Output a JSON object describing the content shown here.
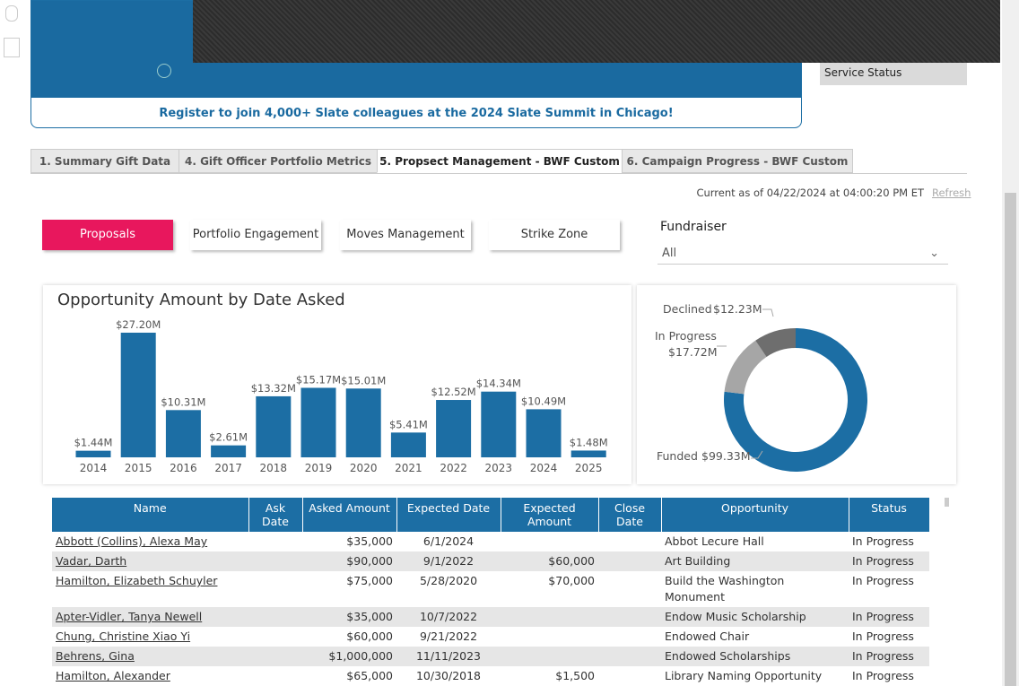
{
  "banner": {
    "text": "Register to join 4,000+ Slate colleagues at the 2024 Slate Summit in Chicago!"
  },
  "service_status": "Service Status",
  "tabs": [
    "1. Summary Gift Data",
    "4. Gift Officer Portfolio Metrics",
    "5. Propsect Management - BWF Custom",
    "6. Campaign Progress - BWF Custom"
  ],
  "status_line": {
    "text": "Current as of 04/22/2024 at 04:00:20 PM ET",
    "refresh": "Refresh"
  },
  "buttons": [
    "Proposals",
    "Portfolio Engagement",
    "Moves Management",
    "Strike Zone"
  ],
  "filter": {
    "label": "Fundraiser",
    "value": "All"
  },
  "chart_data": [
    {
      "type": "bar",
      "title": "Opportunity Amount by Date Asked",
      "color": "#1c6ea4",
      "categories": [
        "2014",
        "2015",
        "2016",
        "2017",
        "2018",
        "2019",
        "2020",
        "2021",
        "2022",
        "2023",
        "2024",
        "2025"
      ],
      "values": [
        1.44,
        27.2,
        10.31,
        2.61,
        13.32,
        15.17,
        15.01,
        5.41,
        12.52,
        14.34,
        10.49,
        1.48
      ],
      "value_labels": [
        "$1.44M",
        "$27.20M",
        "$10.31M",
        "$2.61M",
        "$13.32M",
        "$15.17M",
        "$15.01M",
        "$5.41M",
        "$12.52M",
        "$14.34M",
        "$10.49M",
        "$1.48M"
      ]
    },
    {
      "type": "pie",
      "categories": [
        "Funded",
        "In Progress",
        "Declined"
      ],
      "values": [
        99.33,
        17.72,
        12.23
      ],
      "value_labels": [
        "$99.33M",
        "$17.72M",
        "$12.23M"
      ],
      "colors": [
        "#1c6ea4",
        "#a6a6a6",
        "#6e6e6e"
      ]
    }
  ],
  "table": {
    "columns": [
      "Name",
      "Ask Date",
      "Asked Amount",
      "Expected Date",
      "Expected Amount",
      "Close Date",
      "Opportunity",
      "Status"
    ],
    "rows": [
      [
        "Abbott (Collins), Alexa May",
        null,
        "$35,000",
        "6/1/2024",
        null,
        null,
        "Abbot Lecure Hall",
        "In Progress"
      ],
      [
        "Vadar, Darth",
        null,
        "$90,000",
        "9/1/2022",
        "$60,000",
        null,
        "Art Building",
        "In Progress"
      ],
      [
        "Hamilton, Elizabeth Schuyler",
        null,
        "$75,000",
        "5/28/2020",
        "$70,000",
        null,
        "Build the Washington Monument",
        "In Progress"
      ],
      [
        "Apter-Vidler, Tanya Newell",
        null,
        "$35,000",
        "10/7/2022",
        null,
        null,
        "Endow Music Scholarship",
        "In Progress"
      ],
      [
        "Chung, Christine Xiao Yi",
        null,
        "$60,000",
        "9/21/2022",
        null,
        null,
        "Endowed Chair",
        "In Progress"
      ],
      [
        "Behrens, Gina",
        null,
        "$1,000,000",
        "11/11/2023",
        null,
        null,
        "Endowed Scholarships",
        "In Progress"
      ],
      [
        "Hamilton, Alexander",
        null,
        "$65,000",
        "10/30/2018",
        "$1,500",
        null,
        "Library Naming Opportunity",
        "In Progress"
      ]
    ]
  }
}
